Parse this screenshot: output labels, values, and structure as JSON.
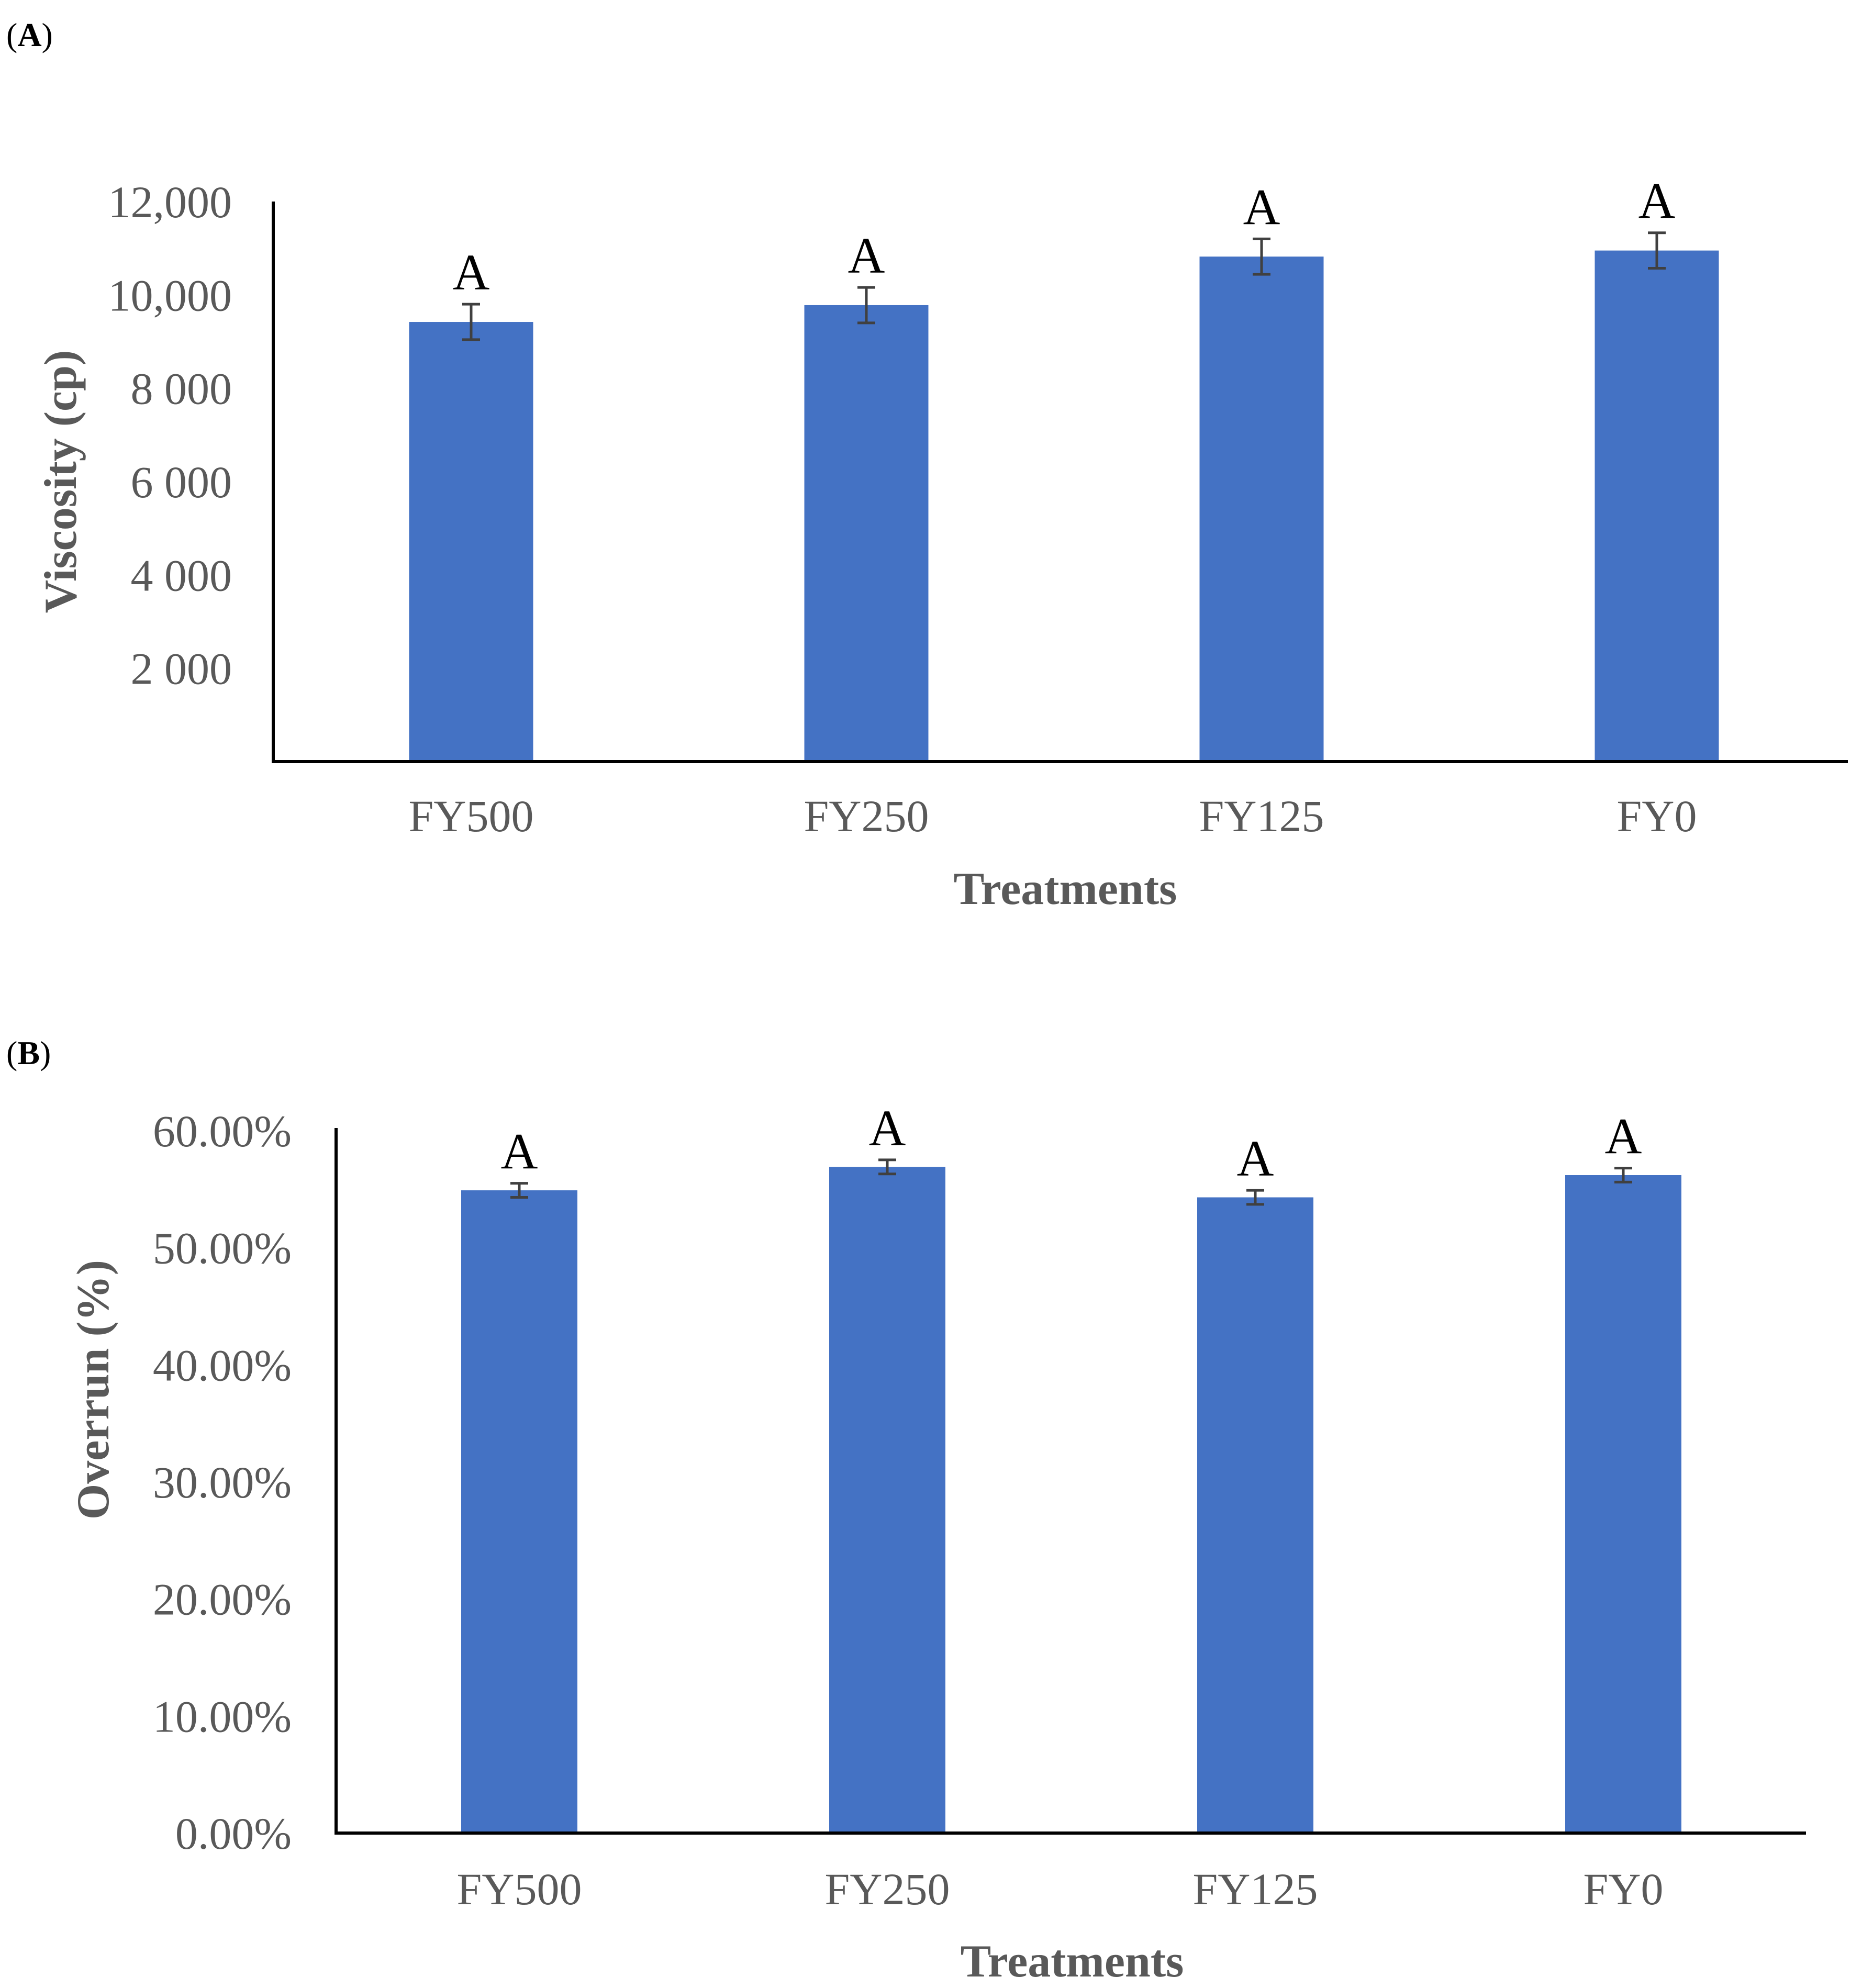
{
  "chart_data": [
    {
      "type": "bar",
      "panel_label": {
        "open": "(",
        "letter": "A",
        "close": ")"
      },
      "categories": [
        "FY500",
        "FY250",
        "FY125",
        "FY0"
      ],
      "values": [
        9420,
        9780,
        10820,
        10950
      ],
      "errors": [
        380,
        380,
        380,
        380
      ],
      "significance": [
        "A",
        "A",
        "A",
        "A"
      ],
      "ylabel": "Viscosity (cp)",
      "xlabel": "Treatments",
      "ylim": [
        0,
        12000
      ],
      "yticks": [
        2000,
        4000,
        6000,
        8000,
        10000,
        12000
      ],
      "ytick_labels": [
        "2 000",
        "4 000",
        "6 000",
        "8 000",
        "10,000",
        "12,000"
      ],
      "bar_color": "#4472C4"
    },
    {
      "type": "bar",
      "panel_label": {
        "open": "(",
        "letter": "B",
        "close": ")"
      },
      "categories": [
        "FY500",
        "FY250",
        "FY125",
        "FY0"
      ],
      "values": [
        54.9,
        56.9,
        54.3,
        56.2
      ],
      "errors": [
        0.6,
        0.6,
        0.6,
        0.6
      ],
      "significance": [
        "A",
        "A",
        "A",
        "A"
      ],
      "ylabel": "Overrun (%)",
      "xlabel": "Treatments",
      "ylim": [
        0,
        60
      ],
      "yticks": [
        0,
        10,
        20,
        30,
        40,
        50,
        60
      ],
      "ytick_labels": [
        "0.00%",
        "10.00%",
        "20.00%",
        "30.00%",
        "40.00%",
        "50.00%",
        "60.00%"
      ],
      "bar_color": "#4472C4"
    }
  ]
}
